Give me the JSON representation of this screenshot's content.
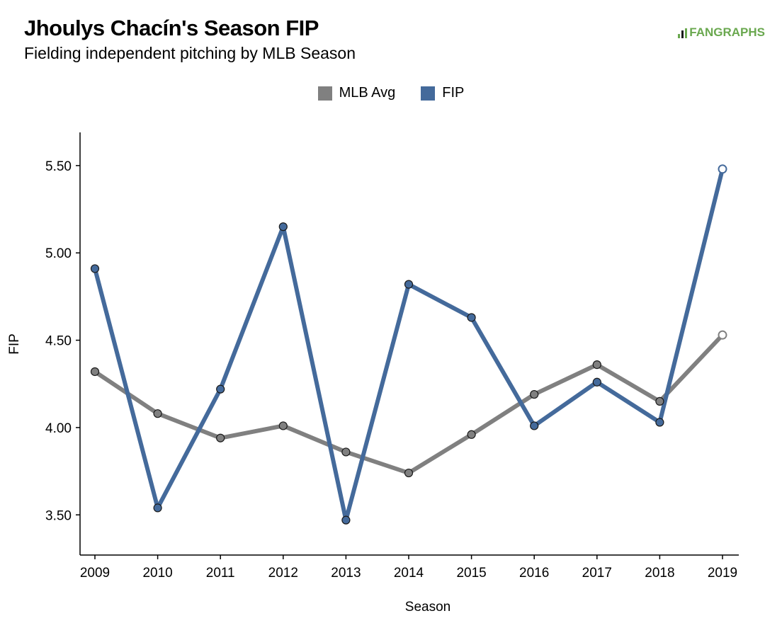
{
  "title": "Jhoulys Chacín's Season FIP",
  "subtitle": "Fielding independent pitching by MLB Season",
  "logo": "FANGRAPHS",
  "chart_data": {
    "type": "line",
    "title": "Jhoulys Chacín's Season FIP",
    "subtitle": "Fielding independent pitching by MLB Season",
    "xlabel": "Season",
    "ylabel": "FIP",
    "categories": [
      "2009",
      "2010",
      "2011",
      "2012",
      "2013",
      "2014",
      "2015",
      "2016",
      "2017",
      "2018",
      "2019"
    ],
    "y_ticks": [
      "3.50",
      "4.00",
      "4.50",
      "5.00",
      "5.50"
    ],
    "ylim": [
      3.27,
      5.69
    ],
    "legend_position": "top-center",
    "grid": false,
    "series": [
      {
        "name": "MLB Avg",
        "color": "#808080",
        "values": [
          4.32,
          4.08,
          3.94,
          4.01,
          3.86,
          3.74,
          3.96,
          4.19,
          4.36,
          4.15,
          4.53
        ]
      },
      {
        "name": "FIP",
        "color": "#446a9b",
        "values": [
          4.91,
          3.54,
          4.22,
          5.15,
          3.47,
          4.82,
          4.63,
          4.01,
          4.26,
          4.03,
          5.48
        ]
      }
    ]
  }
}
